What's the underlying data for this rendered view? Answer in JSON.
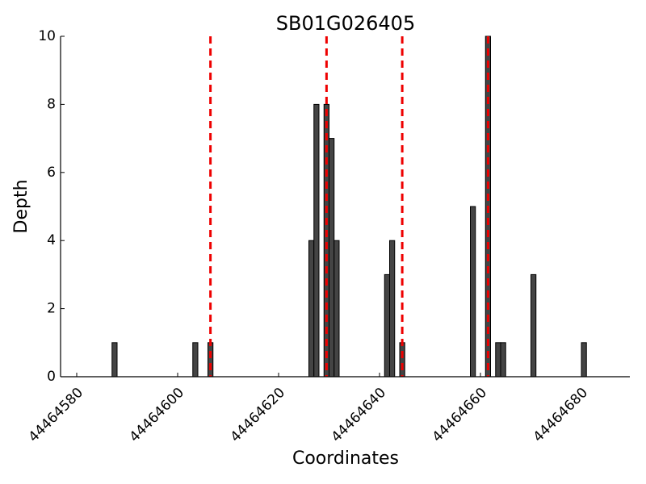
{
  "chart_data": {
    "type": "bar",
    "title": "SB01G026405",
    "x_label": "Coordinates",
    "y_label": "Depth",
    "x": [
      44464587,
      44464603,
      44464606,
      44464626,
      44464627,
      44464629,
      44464630,
      44464631,
      44464641,
      44464642,
      44464644,
      44464658,
      44464661,
      44464663,
      44464664,
      44464670,
      44464680
    ],
    "values": [
      1,
      1,
      1,
      4,
      8,
      8,
      7,
      4,
      3,
      4,
      1,
      5,
      10,
      1,
      1,
      3,
      1
    ],
    "color": "#444444",
    "markers": {
      "color": "#ee0000",
      "x": [
        44464606.5,
        44464629.5,
        44464644.5,
        44464661.5
      ]
    },
    "xlim": [
      44464576.8,
      44464689.6
    ],
    "xticks": [
      44464580,
      44464600,
      44464620,
      44464640,
      44464660,
      44464680
    ],
    "ylim": [
      0,
      10
    ],
    "yticks": [
      0,
      2,
      4,
      6,
      8,
      10
    ],
    "grid": false
  }
}
